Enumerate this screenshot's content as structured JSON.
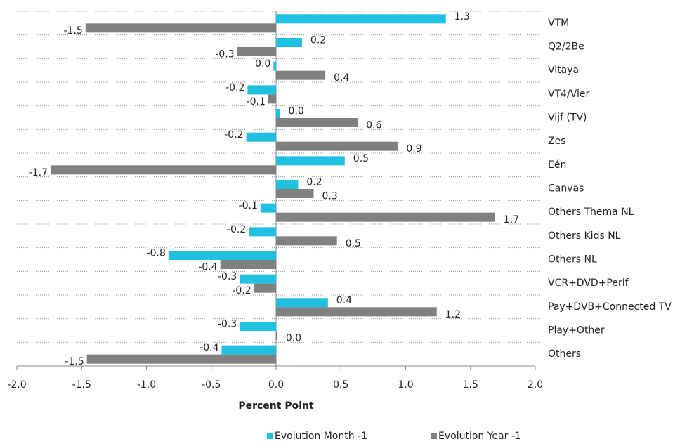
{
  "chart_data": {
    "type": "barh",
    "x_label": "Percent Point",
    "categories": [
      "VTM",
      "Q2/2Be",
      "Vitaya",
      "VT4/Vier",
      "Vijf (TV)",
      "Zes",
      "Eén",
      "Canvas",
      "Others Thema NL",
      "Others Kids NL",
      "Others NL",
      "VCR+DVD+Perif",
      "Pay+DVB+Connected TV",
      "Play+Other",
      "Others"
    ],
    "series": [
      {
        "name": "Evolution Month -1",
        "color": "#1fc0e0",
        "values": [
          1.31,
          0.2,
          -0.02,
          -0.22,
          0.03,
          -0.23,
          0.53,
          0.17,
          -0.12,
          -0.21,
          -0.83,
          -0.28,
          0.4,
          -0.28,
          -0.42
        ],
        "value_labels": [
          "1.3",
          "0.2",
          "0.0",
          "-0.2",
          "0.0",
          "-0.2",
          "0.5",
          "0.2",
          "-0.1",
          "-0.2",
          "-0.8",
          "-0.3",
          "0.4",
          "-0.3",
          "-0.4"
        ]
      },
      {
        "name": "Evolution Year -1",
        "color": "#808080",
        "values": [
          -1.47,
          -0.3,
          0.38,
          -0.06,
          0.63,
          0.94,
          -1.74,
          0.29,
          1.69,
          0.47,
          -0.43,
          -0.17,
          1.24,
          0.01,
          -1.46
        ],
        "value_labels": [
          "-1.5",
          "-0.3",
          "0.4",
          "-0.1",
          "0.6",
          "0.9",
          "-1.7",
          "0.3",
          "1.7",
          "0.5",
          "-0.4",
          "-0.2",
          "1.2",
          "0.0",
          "-1.5"
        ]
      }
    ],
    "xlim": [
      -2.0,
      2.0
    ],
    "xticks": [
      {
        "value": -2,
        "label": "-2.0"
      },
      {
        "value": -1.5,
        "label": "-1.5"
      },
      {
        "value": -1,
        "label": "-1.0"
      },
      {
        "value": -0.5,
        "label": "-0.5"
      },
      {
        "value": 0,
        "label": "0.0"
      },
      {
        "value": 0.5,
        "label": "0.5"
      },
      {
        "value": 1,
        "label": "1.0"
      },
      {
        "value": 1.5,
        "label": "1.5"
      },
      {
        "value": 2,
        "label": "2.0"
      }
    ],
    "legend": "bottom"
  }
}
